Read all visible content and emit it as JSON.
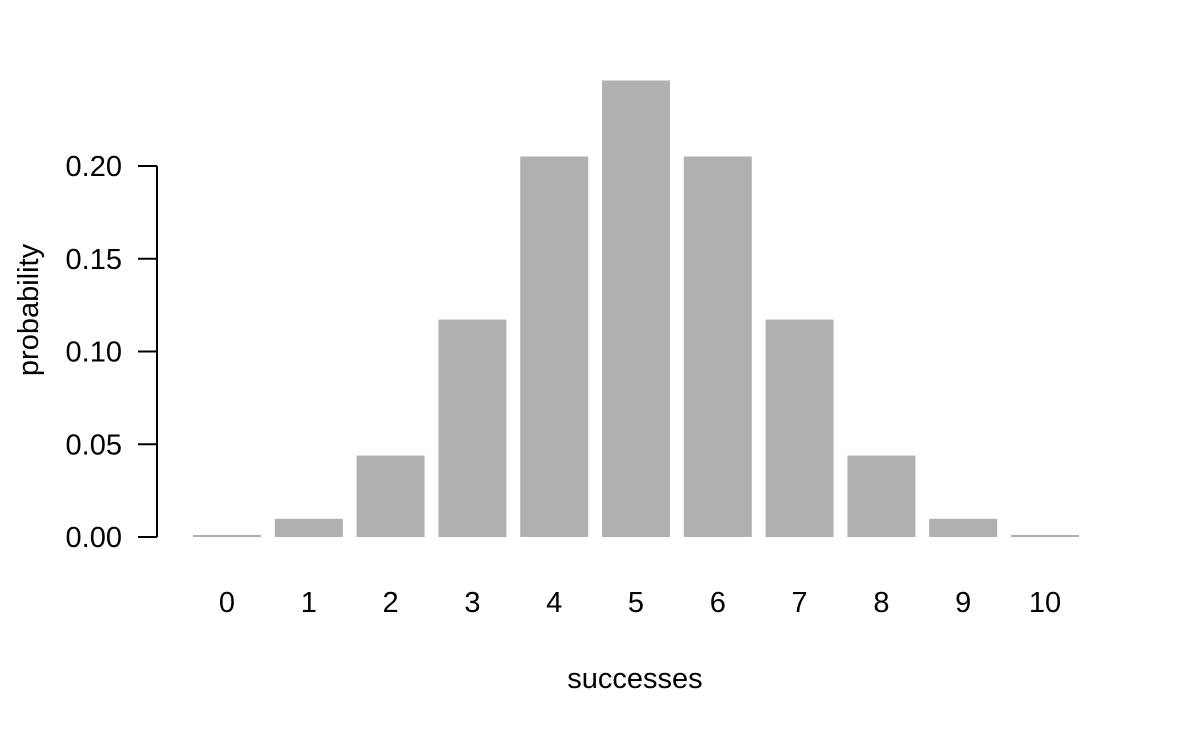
{
  "chart_data": {
    "type": "bar",
    "title": "",
    "xlabel": "successes",
    "ylabel": "probability",
    "categories": [
      "0",
      "1",
      "2",
      "3",
      "4",
      "5",
      "6",
      "7",
      "8",
      "9",
      "10"
    ],
    "values": [
      0.001,
      0.0098,
      0.0439,
      0.1172,
      0.2051,
      0.2461,
      0.2051,
      0.1172,
      0.0439,
      0.0098,
      0.001
    ],
    "ylim": [
      0,
      0.25
    ],
    "yticks": [
      0.0,
      0.05,
      0.1,
      0.15,
      0.2
    ],
    "ytick_labels": [
      "0.00",
      "0.05",
      "0.10",
      "0.15",
      "0.20"
    ],
    "grid": false,
    "legend": "none",
    "bar_color": "#b0b0b0",
    "axis_color": "#000000"
  }
}
